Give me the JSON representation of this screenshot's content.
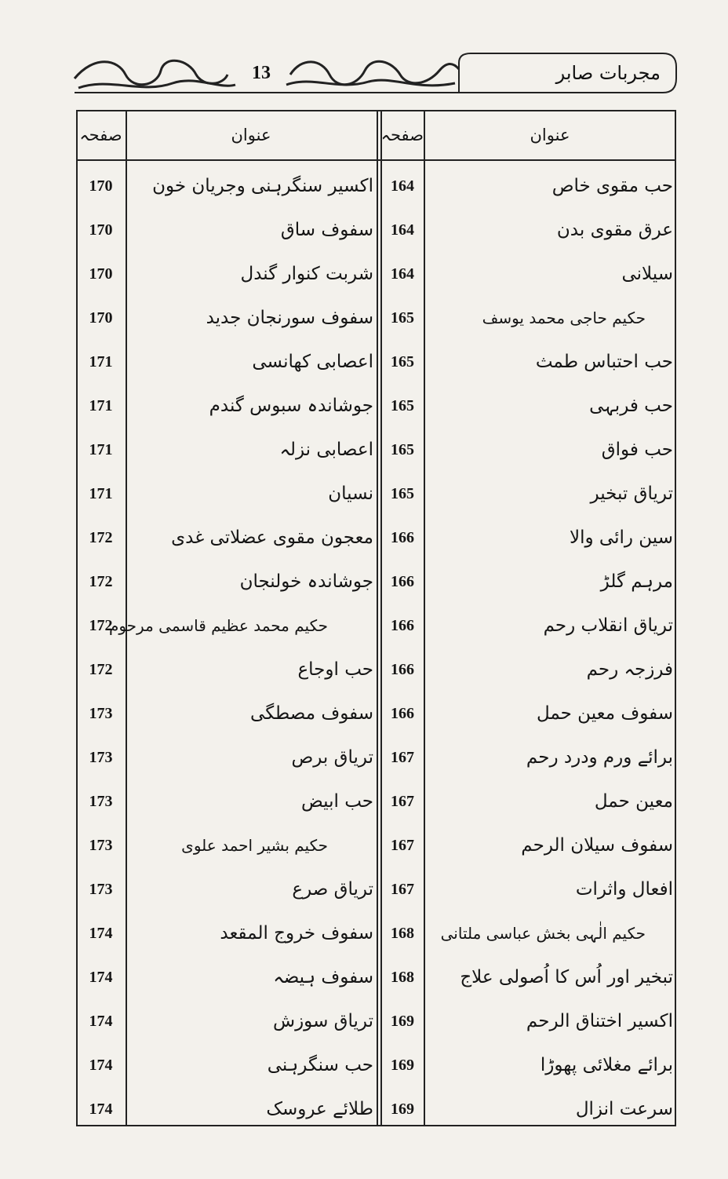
{
  "header": {
    "page_number": "13",
    "title": "مجربات صابر"
  },
  "table": {
    "columns": [
      "عنوان",
      "صفحہ"
    ],
    "right_rows": [
      [
        "حب مقوی خاص",
        164
      ],
      [
        "عرق مقوی بدن",
        164
      ],
      [
        "سیلانی",
        164
      ],
      [
        "حکیم حاجی محمد یوسف",
        165
      ],
      [
        "حب احتباس طمث",
        165
      ],
      [
        "حب فربہی",
        165
      ],
      [
        "حب فواق",
        165
      ],
      [
        "تریاق تبخیر",
        165
      ],
      [
        "سین رائی والا",
        166
      ],
      [
        "مرہم گلڑ",
        166
      ],
      [
        "تریاق انقلاب رحم",
        166
      ],
      [
        "فرزجہ رحم",
        166
      ],
      [
        "سفوف معین حمل",
        166
      ],
      [
        "برائے ورم ودرد رحم",
        167
      ],
      [
        "معین حمل",
        167
      ],
      [
        "سفوف سیلان الرحم",
        167
      ],
      [
        "افعال واثرات",
        167
      ],
      [
        "حکیم الٰہی بخش عباسی ملتانی",
        168
      ],
      [
        "تبخیر اور اُس کا اُصولی علاج",
        168
      ],
      [
        "اکسیر اختناق الرحم",
        169
      ],
      [
        "برائے مغلائی پھوڑا",
        169
      ],
      [
        "سرعت انزال",
        169
      ]
    ],
    "left_rows": [
      [
        "اکسیر سنگرہنی وجریان خون",
        170
      ],
      [
        "سفوف ساق",
        170
      ],
      [
        "شربت کنوار گندل",
        170
      ],
      [
        "سفوف سورنجان جدید",
        170
      ],
      [
        "اعصابی کھانسی",
        171
      ],
      [
        "جوشاندہ سبوس گندم",
        171
      ],
      [
        "اعصابی نزلہ",
        171
      ],
      [
        "نسیان",
        171
      ],
      [
        "معجون مقوی عضلاتی غدی",
        172
      ],
      [
        "جوشاندہ خولنجان",
        172
      ],
      [
        "حکیم محمد عظیم قاسمی مرحوم",
        172
      ],
      [
        "حب اوجاع",
        172
      ],
      [
        "سفوف مصطگی",
        173
      ],
      [
        "تریاق برص",
        173
      ],
      [
        "حب ابیض",
        173
      ],
      [
        "حکیم بشیر احمد علوی",
        173
      ],
      [
        "تریاق صرع",
        173
      ],
      [
        "سفوف خروج المقعد",
        174
      ],
      [
        "سفوف ہیضہ",
        174
      ],
      [
        "تریاق سوزش",
        174
      ],
      [
        "حب سنگرہنی",
        174
      ],
      [
        "طلائے عروسک",
        174
      ]
    ]
  }
}
